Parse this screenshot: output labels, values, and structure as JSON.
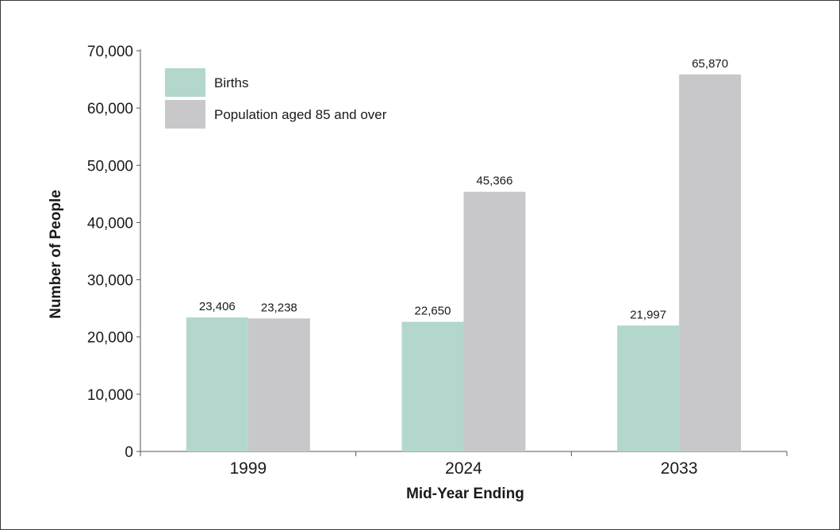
{
  "chart_data": {
    "type": "bar",
    "categories": [
      "1999",
      "2024",
      "2033"
    ],
    "series": [
      {
        "name": "Births",
        "color": "#b3d7cc",
        "values": [
          23406,
          22650,
          21997
        ],
        "labels": [
          "23,406",
          "22,650",
          "21,997"
        ]
      },
      {
        "name": "Population aged 85 and over",
        "color": "#c8c8ca",
        "values": [
          23238,
          45366,
          65870
        ],
        "labels": [
          "23,238",
          "45,366",
          "65,870"
        ]
      }
    ],
    "xlabel": "Mid-Year Ending",
    "ylabel": "Number of People",
    "ylim": [
      0,
      70000
    ],
    "yticks": [
      0,
      10000,
      20000,
      30000,
      40000,
      50000,
      60000,
      70000
    ],
    "ytick_labels": [
      "0",
      "10,000",
      "20,000",
      "30,000",
      "40,000",
      "50,000",
      "60,000",
      "70,000"
    ],
    "grid": false,
    "legend_position": "top-left"
  }
}
